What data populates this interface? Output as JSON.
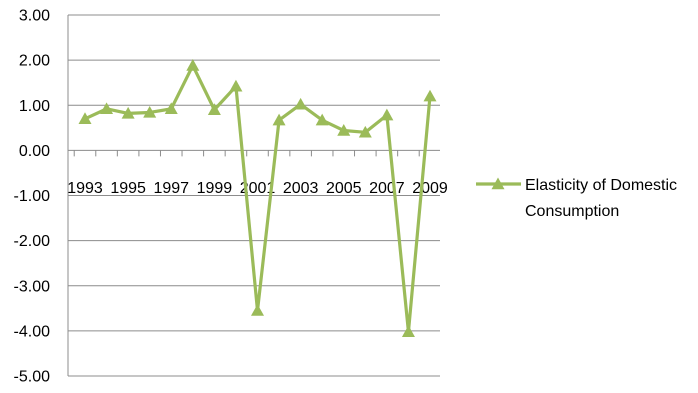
{
  "chart_data": {
    "type": "line",
    "title": "",
    "xlabel": "",
    "ylabel": "",
    "ylim": [
      -5,
      3
    ],
    "y_ticks": [
      "3.00",
      "2.00",
      "1.00",
      "0.00",
      "-1.00",
      "-2.00",
      "-3.00",
      "-4.00",
      "-5.00"
    ],
    "y_tick_values": [
      3,
      2,
      1,
      0,
      -1,
      -2,
      -3,
      -4,
      -5
    ],
    "x_tick_labels": [
      "1993",
      "1995",
      "1997",
      "1999",
      "2001",
      "2003",
      "2005",
      "2007",
      "2009"
    ],
    "categories": [
      "1993",
      "1994",
      "1995",
      "1996",
      "1997",
      "1998",
      "1999",
      "2000",
      "2001",
      "2002",
      "2003",
      "2004",
      "2005",
      "2006",
      "2007",
      "2008",
      "2009"
    ],
    "grid": "horizontal",
    "legend_position": "right",
    "series": [
      {
        "name_lines": [
          "Elasticity of Domestic",
          "Consumption"
        ],
        "color": "#9bbb59",
        "marker": "triangle",
        "values": [
          0.7,
          0.92,
          0.82,
          0.84,
          0.92,
          1.88,
          0.9,
          1.42,
          -3.55,
          0.67,
          1.02,
          0.67,
          0.44,
          0.4,
          0.78,
          -4.02,
          1.2
        ]
      }
    ]
  }
}
